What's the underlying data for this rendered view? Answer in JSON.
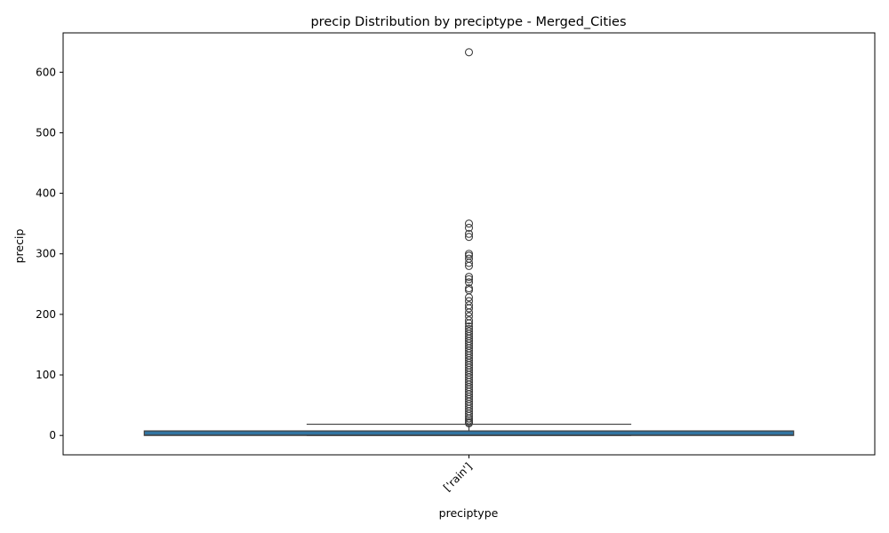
{
  "chart_data": {
    "type": "box",
    "title": "precip Distribution by preciptype - Merged_Cities",
    "xlabel": "preciptype",
    "ylabel": "precip",
    "categories": [
      "['rain']"
    ],
    "ylim": [
      -32,
      665
    ],
    "yticks": [
      0,
      100,
      200,
      300,
      400,
      500,
      600
    ],
    "grid": false,
    "legend": "none",
    "colors": {
      "box_fill": "#3274a1",
      "line": "#3f3f3f"
    },
    "boxes": [
      {
        "category": "['rain']",
        "min": 0,
        "q1": 0,
        "median": 0.5,
        "q3": 7.5,
        "whisker_high": 18.5,
        "outliers": [
          633,
          350,
          343,
          333,
          328,
          300,
          297,
          292,
          285,
          280,
          262,
          258,
          253,
          243,
          240,
          228,
          222,
          215,
          210,
          203,
          197,
          190,
          185,
          180,
          176,
          172,
          168,
          164,
          160,
          156,
          152,
          148,
          144,
          140,
          136,
          132,
          128,
          124,
          120,
          116,
          112,
          108,
          104,
          100,
          96,
          92,
          88,
          84,
          80,
          76,
          72,
          68,
          64,
          60,
          56,
          52,
          48,
          44,
          40,
          36,
          32,
          28,
          25,
          22,
          20
        ]
      }
    ]
  }
}
